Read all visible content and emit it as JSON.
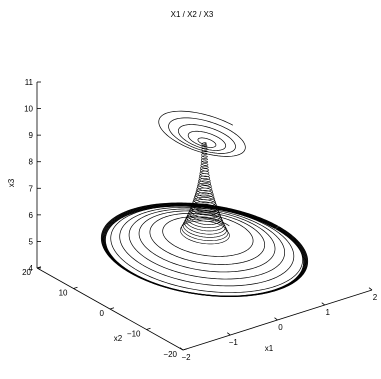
{
  "chart_data": {
    "type": "line",
    "projection": "3d",
    "title": "X1 / X2 / X3",
    "xlabel": "x1",
    "ylabel": "x2",
    "zlabel": "x3",
    "xlim": [
      -2,
      2
    ],
    "ylim": [
      -20,
      20
    ],
    "zlim": [
      4,
      11
    ],
    "xticks": [
      "−2",
      "−1",
      "0",
      "1",
      "2"
    ],
    "yticks": [
      "−20",
      "−10",
      "0",
      "10",
      "20"
    ],
    "zticks": [
      "4",
      "5",
      "6",
      "7",
      "8",
      "9",
      "10",
      "11"
    ],
    "grid": false,
    "series": [
      {
        "color": "#000000",
        "description_points": {
          "start": {
            "x1": 0.4,
            "x2": 10,
            "x3": 9.6
          },
          "apex": {
            "x1": 0,
            "x2": 0,
            "x3": 9.1
          },
          "funnel_bottom": {
            "x1": 0,
            "x2": 0,
            "x3": 6.0
          },
          "limit_cycle_amplitude": {
            "x1": 1.5,
            "x2": 19,
            "x3": 5.05
          }
        }
      }
    ]
  }
}
